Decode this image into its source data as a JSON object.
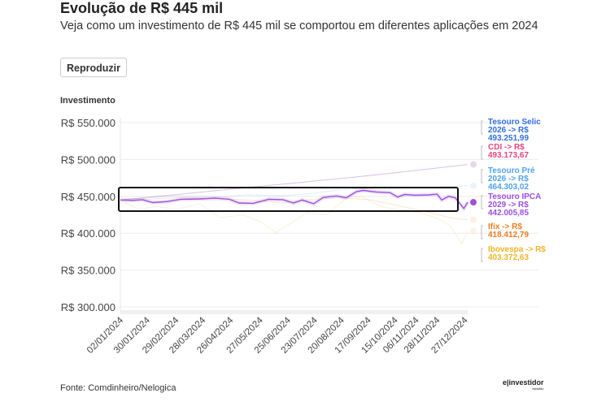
{
  "header": {
    "title": "Evolução de R$ 445 mil",
    "subtitle": "Veja como um investimento de R$ 445 mil se comportou em diferentes aplicações em 2024",
    "play_button": "Reproduzir"
  },
  "footer": {
    "source": "Fonte: Comdinheiro/Nelogica",
    "logo": "e|investidor",
    "logo_sub": "estadão"
  },
  "chart_data": {
    "type": "line",
    "title": "",
    "ylabel": "Investimento",
    "xlabel": "",
    "ylim": [
      300000,
      550000
    ],
    "y_ticks": [
      550000,
      500000,
      450000,
      400000,
      350000,
      300000
    ],
    "y_tick_labels": [
      "R$ 550.000",
      "R$ 500.000",
      "R$ 450.000",
      "R$ 400.000",
      "R$ 350.000",
      "R$ 300.000"
    ],
    "x_tick_labels": [
      "02/01/2024",
      "30/01/2024",
      "29/02/2024",
      "28/03/2024",
      "26/04/2024",
      "27/05/2024",
      "25/06/2024",
      "23/07/2024",
      "20/08/2024",
      "17/09/2024",
      "15/10/2024",
      "06/11/2024",
      "28/11/2024",
      "27/12/2024"
    ],
    "grid": true,
    "highlighted_series": "Tesouro IPCA 2029",
    "series": [
      {
        "name": "Tesouro Selic 2026",
        "label": "Tesouro Selic 2026 -> R$ 493.251,99",
        "color": "#2f6fe0",
        "highlight": false,
        "points": [
          [
            "2024-01-02",
            445000
          ],
          [
            "2024-03-01",
            452500
          ],
          [
            "2024-05-01",
            460300
          ],
          [
            "2024-07-01",
            468000
          ],
          [
            "2024-09-02",
            476000
          ],
          [
            "2024-11-01",
            484500
          ],
          [
            "2024-12-30",
            493252
          ]
        ]
      },
      {
        "name": "CDI",
        "label": "CDI -> R$ 493.173,67",
        "color": "#e8457d",
        "highlight": false,
        "points": [
          [
            "2024-01-02",
            445000
          ],
          [
            "2024-03-01",
            452400
          ],
          [
            "2024-05-01",
            460200
          ],
          [
            "2024-07-01",
            467900
          ],
          [
            "2024-09-02",
            475900
          ],
          [
            "2024-11-01",
            484400
          ],
          [
            "2024-12-30",
            493174
          ]
        ]
      },
      {
        "name": "Tesouro Pré 2026",
        "label": "Tesouro Pré 2026 -> R$ 464.303,02",
        "color": "#4da3f0",
        "highlight": false,
        "points": [
          [
            "2024-01-02",
            445000
          ],
          [
            "2024-02-01",
            448000
          ],
          [
            "2024-03-01",
            450500
          ],
          [
            "2024-04-15",
            449000
          ],
          [
            "2024-05-15",
            452000
          ],
          [
            "2024-06-20",
            450500
          ],
          [
            "2024-07-20",
            454000
          ],
          [
            "2024-08-20",
            459000
          ],
          [
            "2024-09-20",
            461000
          ],
          [
            "2024-10-20",
            462500
          ],
          [
            "2024-11-20",
            462000
          ],
          [
            "2024-12-10",
            463000
          ],
          [
            "2024-12-30",
            464303
          ]
        ]
      },
      {
        "name": "Tesouro IPCA 2029",
        "label": "Tesouro IPCA 2029 -> R$ 442.005,85",
        "color": "#9b4fe0",
        "highlight": true,
        "points": [
          [
            "2024-01-02",
            445000
          ],
          [
            "2024-01-15",
            444500
          ],
          [
            "2024-01-25",
            445500
          ],
          [
            "2024-02-05",
            441500
          ],
          [
            "2024-02-20",
            443000
          ],
          [
            "2024-03-05",
            446000
          ],
          [
            "2024-03-25",
            446500
          ],
          [
            "2024-04-10",
            447500
          ],
          [
            "2024-04-25",
            446000
          ],
          [
            "2024-05-05",
            441000
          ],
          [
            "2024-05-20",
            440500
          ],
          [
            "2024-06-05",
            446000
          ],
          [
            "2024-06-20",
            445500
          ],
          [
            "2024-07-01",
            441000
          ],
          [
            "2024-07-10",
            445000
          ],
          [
            "2024-07-22",
            440000
          ],
          [
            "2024-08-01",
            448500
          ],
          [
            "2024-08-15",
            450500
          ],
          [
            "2024-08-25",
            448000
          ],
          [
            "2024-09-05",
            456500
          ],
          [
            "2024-09-12",
            458000
          ],
          [
            "2024-09-25",
            456000
          ],
          [
            "2024-10-10",
            455000
          ],
          [
            "2024-10-18",
            449000
          ],
          [
            "2024-10-25",
            452500
          ],
          [
            "2024-11-05",
            451500
          ],
          [
            "2024-11-20",
            452000
          ],
          [
            "2024-11-28",
            453000
          ],
          [
            "2024-12-03",
            445000
          ],
          [
            "2024-12-10",
            450000
          ],
          [
            "2024-12-17",
            448000
          ],
          [
            "2024-12-22",
            440000
          ],
          [
            "2024-12-26",
            433500
          ],
          [
            "2024-12-30",
            442006
          ]
        ]
      },
      {
        "name": "Ifix",
        "label": "Ifix -> R$ 418.412,79",
        "color": "#f07c1e",
        "highlight": false,
        "points": [
          [
            "2024-01-02",
            445000
          ],
          [
            "2024-02-01",
            446000
          ],
          [
            "2024-03-01",
            448500
          ],
          [
            "2024-04-10",
            447000
          ],
          [
            "2024-05-15",
            445000
          ],
          [
            "2024-06-20",
            441000
          ],
          [
            "2024-07-20",
            446000
          ],
          [
            "2024-08-20",
            448000
          ],
          [
            "2024-09-20",
            445000
          ],
          [
            "2024-10-20",
            437000
          ],
          [
            "2024-11-20",
            428000
          ],
          [
            "2024-12-15",
            420000
          ],
          [
            "2024-12-30",
            418413
          ]
        ]
      },
      {
        "name": "Ibovespa",
        "label": "Ibovespa -> R$ 403.372,63",
        "color": "#f0b429",
        "highlight": false,
        "points": [
          [
            "2024-01-02",
            445000
          ],
          [
            "2024-01-20",
            433000
          ],
          [
            "2024-02-10",
            436000
          ],
          [
            "2024-03-01",
            432500
          ],
          [
            "2024-03-25",
            440000
          ],
          [
            "2024-04-15",
            421000
          ],
          [
            "2024-05-10",
            425000
          ],
          [
            "2024-05-30",
            414000
          ],
          [
            "2024-06-12",
            401000
          ],
          [
            "2024-06-25",
            411000
          ],
          [
            "2024-07-15",
            428000
          ],
          [
            "2024-08-05",
            425000
          ],
          [
            "2024-08-25",
            448000
          ],
          [
            "2024-09-10",
            450000
          ],
          [
            "2024-09-30",
            436000
          ],
          [
            "2024-10-20",
            432000
          ],
          [
            "2024-11-10",
            428000
          ],
          [
            "2024-11-28",
            420000
          ],
          [
            "2024-12-12",
            410000
          ],
          [
            "2024-12-24",
            386000
          ],
          [
            "2024-12-30",
            403373
          ]
        ]
      }
    ]
  }
}
